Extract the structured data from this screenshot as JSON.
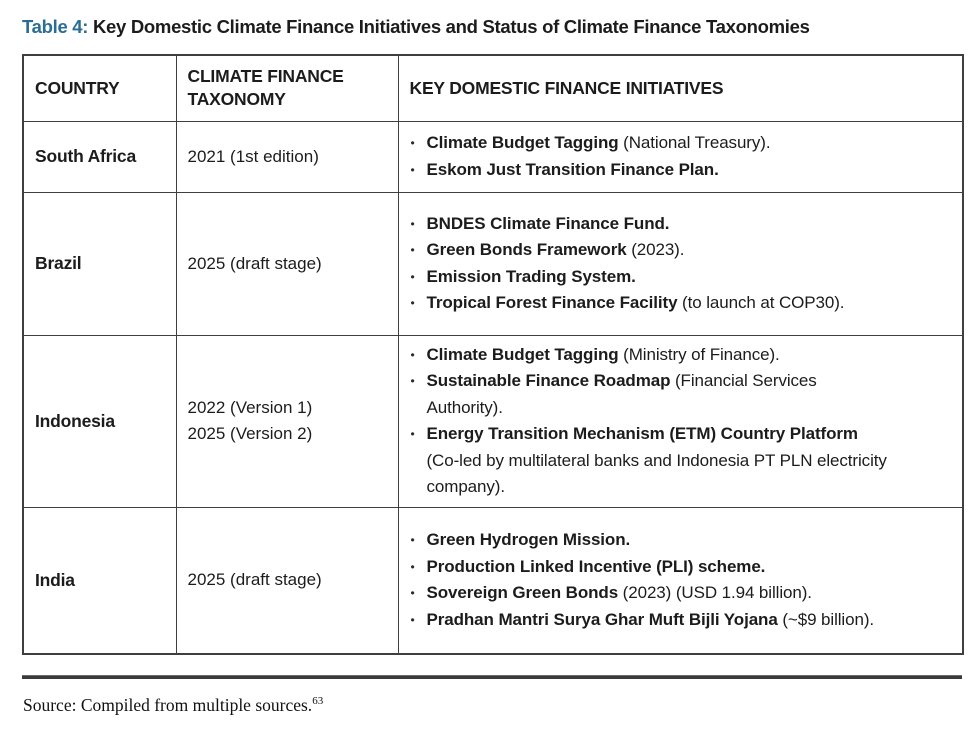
{
  "title": {
    "label": "Table 4:",
    "text": " Key Domestic Climate Finance Initiatives and Status of Climate Finance Taxonomies"
  },
  "colors": {
    "accent_teal": "#2b6e93",
    "border": "#3f3f3f",
    "text": "#1c1c1c"
  },
  "table": {
    "headers": [
      "COUNTRY",
      "CLIMATE FINANCE TAXONOMY",
      "KEY DOMESTIC FINANCE INITIATIVES"
    ],
    "rows": [
      {
        "country": "South Africa",
        "taxonomy": [
          "2021 (1st edition)"
        ],
        "initiatives": [
          {
            "bold": "Climate Budget Tagging",
            "rest": " (National Treasury)."
          },
          {
            "bold": "Eskom Just Transition Finance Plan.",
            "rest": ""
          }
        ]
      },
      {
        "country": "Brazil",
        "taxonomy": [
          "2025 (draft stage)"
        ],
        "initiatives": [
          {
            "bold": "BNDES Climate Finance Fund.",
            "rest": ""
          },
          {
            "bold": "Green Bonds Framework",
            "rest": " (2023)."
          },
          {
            "bold": "Emission Trading System.",
            "rest": ""
          },
          {
            "bold": "Tropical Forest Finance Facility",
            "rest": " (to launch at COP30)."
          }
        ]
      },
      {
        "country": "Indonesia",
        "taxonomy": [
          "2022 (Version 1)",
          "2025 (Version 2)"
        ],
        "initiatives": [
          {
            "bold": "Climate Budget Tagging",
            "rest": " (Ministry of Finance)."
          },
          {
            "bold": "Sustainable Finance Roadmap",
            "rest": " (Financial Services Authority)."
          },
          {
            "bold": "Energy Transition Mechanism (ETM) Country Platform",
            "rest": " (Co-led by multilateral banks and Indonesia PT PLN electricity company)."
          }
        ]
      },
      {
        "country": "India",
        "taxonomy": [
          "2025 (draft stage)"
        ],
        "initiatives": [
          {
            "bold": "Green Hydrogen Mission.",
            "rest": ""
          },
          {
            "bold": "Production Linked Incentive (PLI) scheme.",
            "rest": ""
          },
          {
            "bold": "Sovereign Green Bonds",
            "rest": " (2023) (USD 1.94 billion)."
          },
          {
            "bold": "Pradhan Mantri Surya Ghar Muft Bijli Yojana",
            "rest": " (~$9 billion)."
          }
        ]
      }
    ]
  },
  "footer": {
    "source_text": "Source: Compiled from multiple sources.",
    "source_superscript": "63"
  }
}
